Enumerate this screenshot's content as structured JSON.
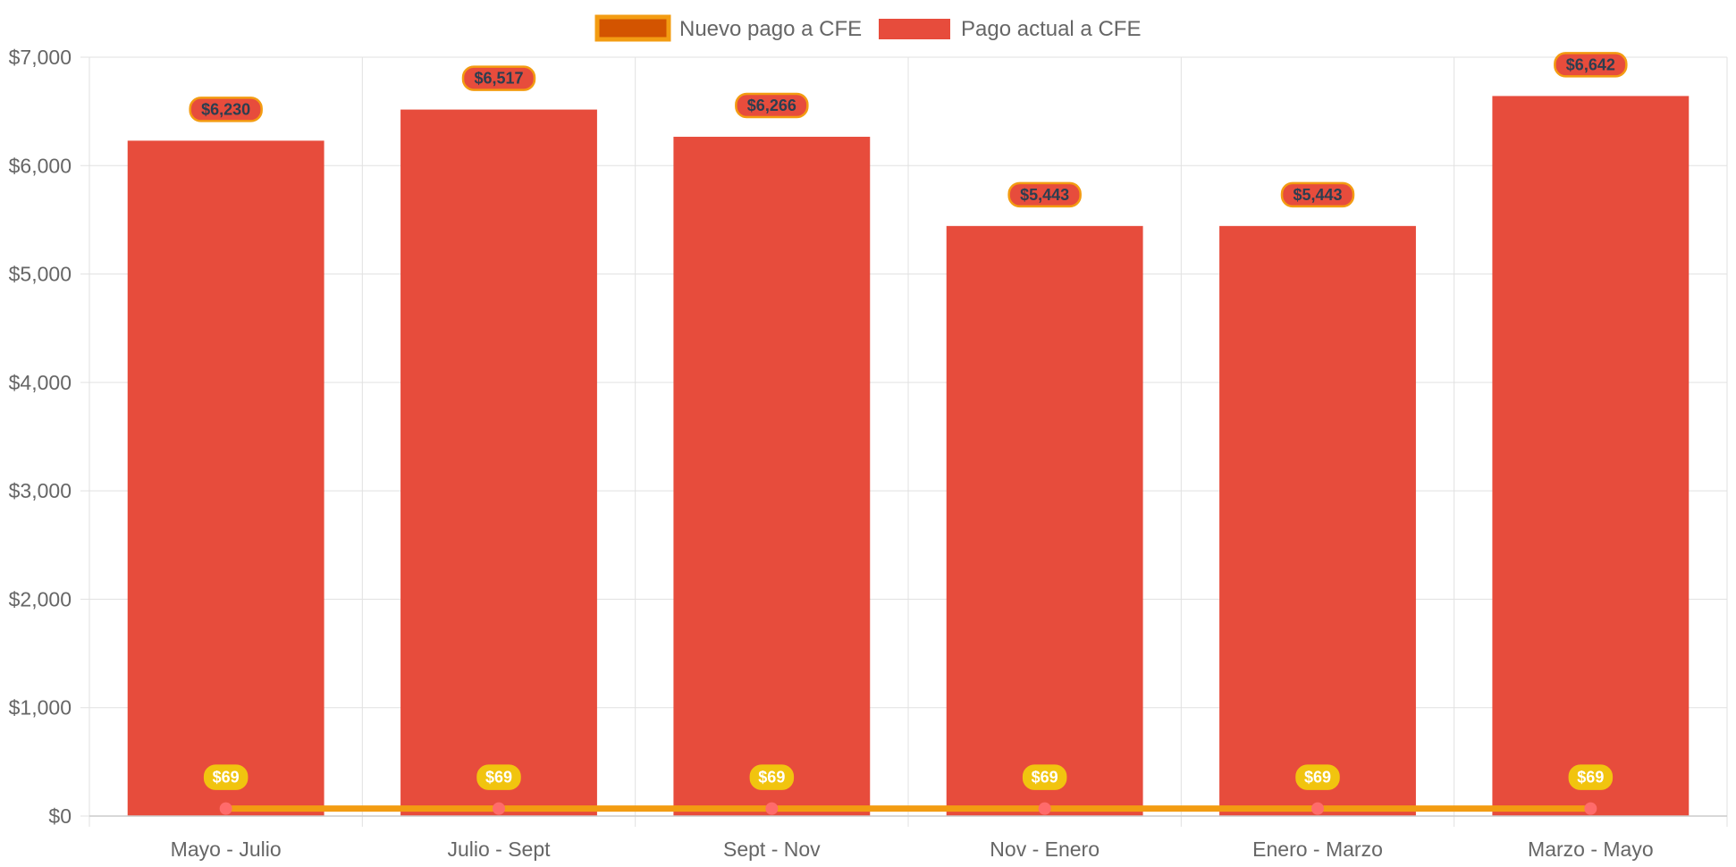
{
  "colors": {
    "bar_fill": "#e74c3c",
    "line": "#f39c12",
    "new_legend_fill": "#d35400",
    "new_label_bg": "#f1c40f",
    "new_label_text": "#ffffff",
    "bar_label_text": "#2c3e50",
    "point_fill": "#ff6b6b",
    "grid": "#e1e1e1",
    "axis_text": "#666666"
  },
  "chart_data": {
    "type": "bar",
    "categories": [
      "Mayo - Julio",
      "Julio - Sept",
      "Sept - Nov",
      "Nov - Enero",
      "Enero - Marzo",
      "Marzo - Mayo"
    ],
    "series": [
      {
        "name": "Nuevo pago a CFE",
        "type": "line",
        "values": [
          69,
          69,
          69,
          69,
          69,
          69
        ],
        "labels": [
          "$69",
          "$69",
          "$69",
          "$69",
          "$69",
          "$69"
        ]
      },
      {
        "name": "Pago actual a CFE",
        "type": "bar",
        "values": [
          6230,
          6517,
          6266,
          5443,
          5443,
          6642
        ],
        "labels": [
          "$6,230",
          "$6,517",
          "$6,266",
          "$5,443",
          "$5,443",
          "$6,642"
        ]
      }
    ],
    "ylim": [
      0,
      7000
    ],
    "y_ticks": [
      0,
      1000,
      2000,
      3000,
      4000,
      5000,
      6000,
      7000
    ],
    "y_tick_labels": [
      "$0",
      "$1,000",
      "$2,000",
      "$3,000",
      "$4,000",
      "$5,000",
      "$6,000",
      "$7,000"
    ],
    "grid": true,
    "legend_position": "top"
  }
}
